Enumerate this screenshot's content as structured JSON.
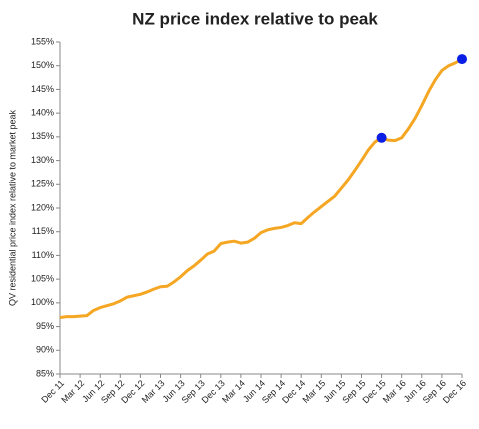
{
  "chart_data": {
    "type": "line",
    "title": "NZ price index relative to peak",
    "y_label": "QV residential price index relative to market peak",
    "categories": [
      "Dec 11",
      null,
      null,
      "Mar 12",
      null,
      null,
      "Jun 12",
      null,
      null,
      "Sep 12",
      null,
      null,
      "Dec 12",
      null,
      null,
      "Mar 13",
      null,
      null,
      "Jun 13",
      null,
      null,
      "Sep 13",
      null,
      null,
      "Dec 13",
      null,
      null,
      "Mar 14",
      null,
      null,
      "Jun 14",
      null,
      null,
      "Sep 14",
      null,
      null,
      "Dec 14",
      null,
      null,
      "Mar 15",
      null,
      null,
      "Jun 15",
      null,
      null,
      "Sep 15",
      null,
      null,
      "Dec 15",
      null,
      null,
      "Mar 16",
      null,
      null,
      "Jun 16",
      null,
      null,
      "Sep 16",
      null,
      null,
      "Dec 16"
    ],
    "series": [
      {
        "color": "#f5a623",
        "values": [
          96.9,
          97.1,
          97.1,
          97.2,
          97.3,
          98.4,
          99.0,
          99.4,
          99.8,
          100.4,
          101.2,
          101.5,
          101.8,
          102.3,
          102.9,
          103.4,
          103.5,
          104.4,
          105.5,
          106.8,
          107.8,
          109.0,
          110.3,
          110.9,
          112.5,
          112.8,
          113.0,
          112.6,
          112.8,
          113.6,
          114.8,
          115.4,
          115.7,
          115.9,
          116.3,
          116.9,
          116.7,
          118.0,
          119.2,
          120.3,
          121.4,
          122.5,
          124.2,
          125.9,
          127.9,
          130.0,
          132.2,
          133.9,
          134.8,
          134.3,
          134.2,
          134.8,
          136.7,
          138.9,
          141.6,
          144.5,
          147.0,
          149.0,
          150.0,
          150.6,
          151.4
        ]
      }
    ],
    "highlight_indices": [
      48,
      60
    ],
    "highlight_color": "#0a1ee6",
    "ylim": [
      85,
      155
    ],
    "yticks": [
      {
        "value": 85,
        "label": "85%"
      },
      {
        "value": 90,
        "label": "90%"
      },
      {
        "value": 95,
        "label": "95%"
      },
      {
        "value": 100,
        "label": "100%"
      },
      {
        "value": 105,
        "label": "105%"
      },
      {
        "value": 110,
        "label": "110%"
      },
      {
        "value": 115,
        "label": "115%"
      },
      {
        "value": 120,
        "label": "120%"
      },
      {
        "value": 125,
        "label": "125%"
      },
      {
        "value": 130,
        "label": "130%"
      },
      {
        "value": 135,
        "label": "135%"
      },
      {
        "value": 140,
        "label": "140%"
      },
      {
        "value": 145,
        "label": "145%"
      },
      {
        "value": 150,
        "label": "150%"
      },
      {
        "value": 155,
        "label": "155%"
      }
    ],
    "grid": false
  }
}
